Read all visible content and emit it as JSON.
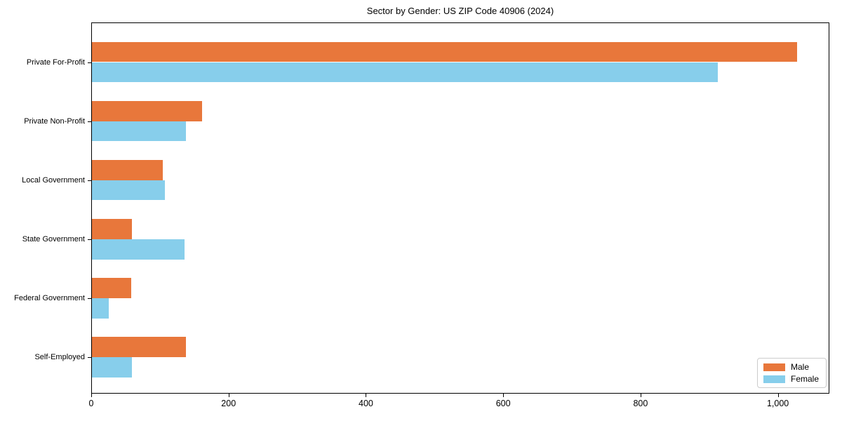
{
  "chart_data": {
    "type": "bar",
    "orientation": "horizontal",
    "title": "Sector by Gender: US ZIP Code 40906 (2024)",
    "categories": [
      "Private For-Profit",
      "Private Non-Profit",
      "Local Government",
      "State Government",
      "Federal Government",
      "Self-Employed"
    ],
    "series": [
      {
        "name": "Male",
        "color": "#e8773b",
        "values": [
          1027,
          160,
          103,
          58,
          57,
          137
        ]
      },
      {
        "name": "Female",
        "color": "#87ceeb",
        "values": [
          912,
          137,
          106,
          135,
          25,
          58
        ]
      }
    ],
    "xlabel": "",
    "ylabel": "",
    "xlim": [
      0,
      1075
    ],
    "xticks": [
      0,
      200,
      400,
      600,
      800,
      1000
    ],
    "xtick_labels": [
      "0",
      "200",
      "400",
      "600",
      "800",
      "1,000"
    ],
    "grid": false,
    "legend_position": "lower-right",
    "legend_labels": [
      "Male",
      "Female"
    ]
  }
}
